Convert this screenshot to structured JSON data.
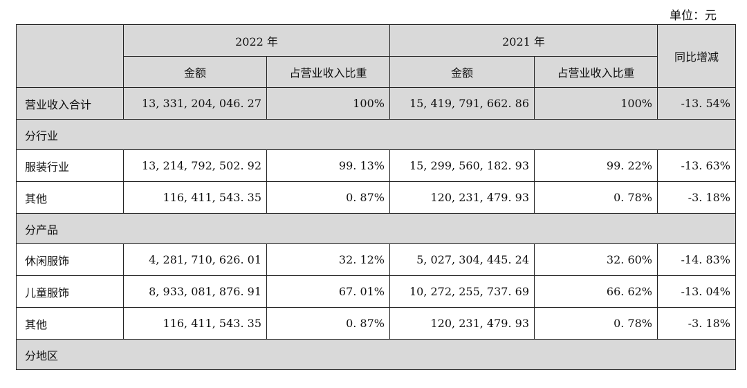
{
  "unit_label": "单位：元",
  "header": {
    "year_2022": "2022 年",
    "year_2021": "2021 年",
    "yoy": "同比增减",
    "amount": "金额",
    "ratio": "占营业收入比重"
  },
  "rows": {
    "total": {
      "label": "营业收入合计",
      "amt2022": "13, 331, 204, 046. 27",
      "ratio2022": "100%",
      "amt2021": "15, 419, 791, 662. 86",
      "ratio2021": "100%",
      "yoy": "-13. 54%"
    },
    "section_industry": "分行业",
    "apparel_industry": {
      "label": "服装行业",
      "amt2022": "13, 214, 792, 502. 92",
      "ratio2022": "99. 13%",
      "amt2021": "15, 299, 560, 182. 93",
      "ratio2021": "99. 22%",
      "yoy": "-13. 63%"
    },
    "other_industry": {
      "label": "其他",
      "amt2022": "116, 411, 543. 35",
      "ratio2022": "0. 87%",
      "amt2021": "120, 231, 479. 93",
      "ratio2021": "0. 78%",
      "yoy": "-3. 18%"
    },
    "section_product": "分产品",
    "casual_wear": {
      "label": "休闲服饰",
      "amt2022": "4, 281, 710, 626. 01",
      "ratio2022": "32. 12%",
      "amt2021": "5, 027, 304, 445. 24",
      "ratio2021": "32. 60%",
      "yoy": "-14. 83%"
    },
    "kids_wear": {
      "label": "儿童服饰",
      "amt2022": "8, 933, 081, 876. 91",
      "ratio2022": "67. 01%",
      "amt2021": "10, 272, 255, 737. 69",
      "ratio2021": "66. 62%",
      "yoy": "-13. 04%"
    },
    "other_product": {
      "label": "其他",
      "amt2022": "116, 411, 543. 35",
      "ratio2022": "0. 87%",
      "amt2021": "120, 231, 479. 93",
      "ratio2021": "0. 78%",
      "yoy": "-3. 18%"
    },
    "section_region": "分地区"
  }
}
